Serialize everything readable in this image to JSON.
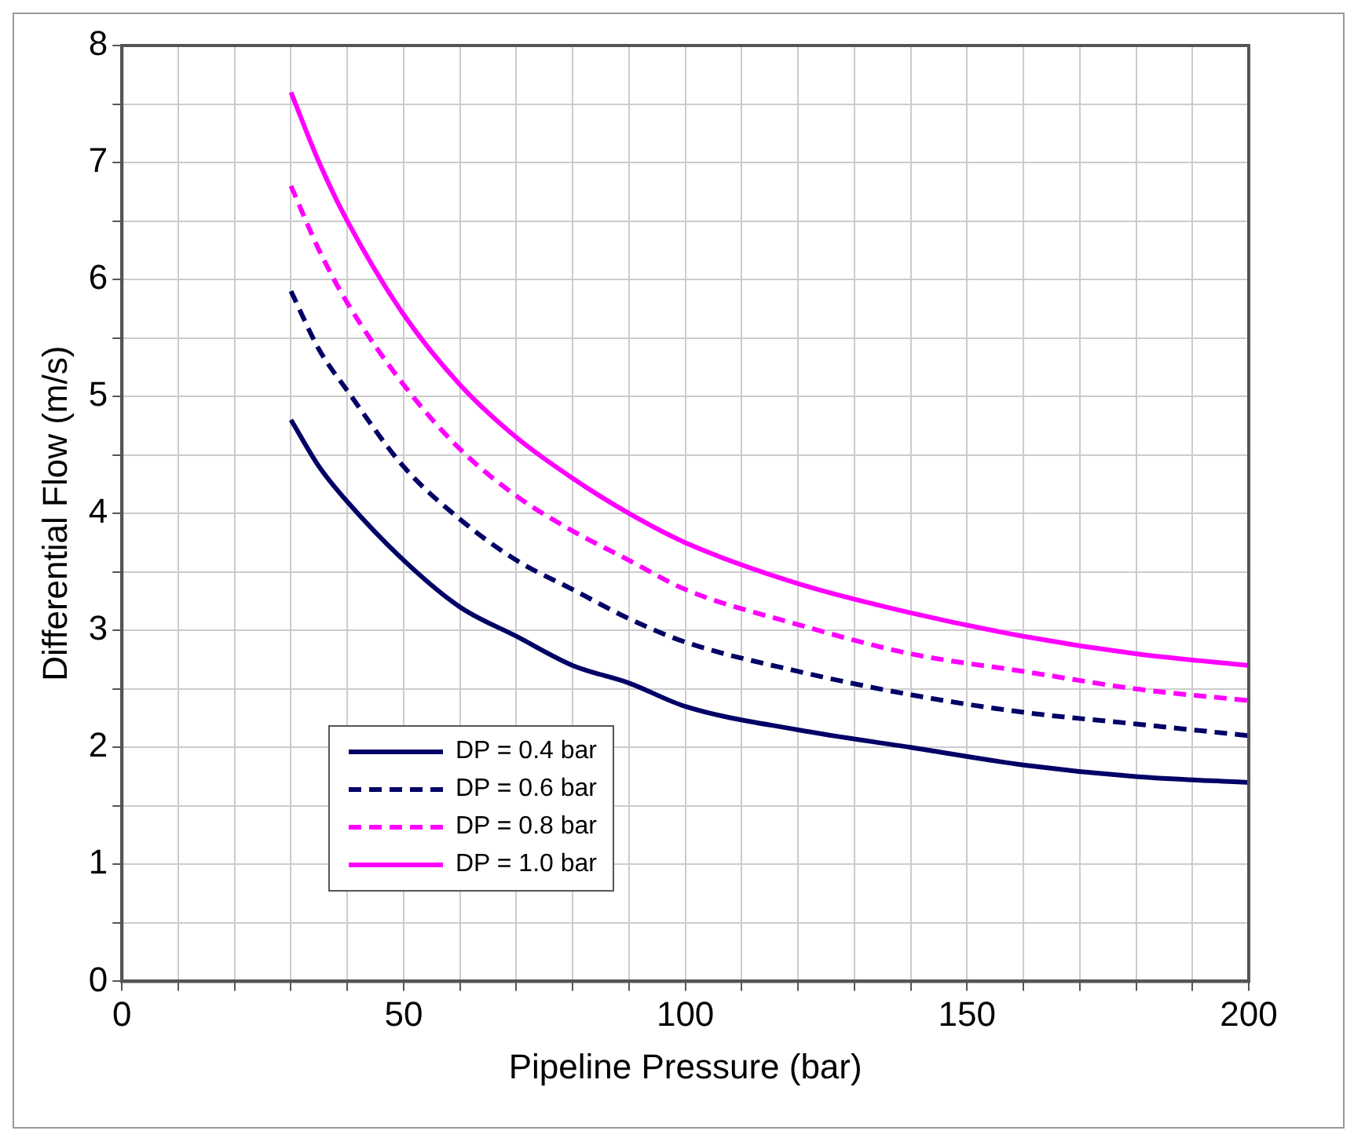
{
  "chart_data": {
    "type": "line",
    "xlabel": "Pipeline Pressure (bar)",
    "ylabel": "Differential Flow (m/s)",
    "x": [
      30,
      35,
      40,
      50,
      60,
      70,
      80,
      90,
      100,
      120,
      140,
      160,
      180,
      200
    ],
    "series": [
      {
        "name": "DP = 0.4 bar",
        "color": "#000066",
        "line_style": "solid",
        "values": [
          4.8,
          4.4,
          4.1,
          3.6,
          3.2,
          2.95,
          2.7,
          2.55,
          2.35,
          2.15,
          2.0,
          1.85,
          1.75,
          1.7
        ]
      },
      {
        "name": "DP = 0.6 bar",
        "color": "#000066",
        "line_style": "dashed",
        "values": [
          5.9,
          5.4,
          5.05,
          4.4,
          3.95,
          3.6,
          3.35,
          3.1,
          2.9,
          2.65,
          2.45,
          2.3,
          2.2,
          2.1
        ]
      },
      {
        "name": "DP = 0.8 bar",
        "color": "#ff00ff",
        "line_style": "dashed",
        "values": [
          6.8,
          6.25,
          5.8,
          5.1,
          4.55,
          4.15,
          3.85,
          3.6,
          3.35,
          3.05,
          2.8,
          2.65,
          2.5,
          2.4
        ]
      },
      {
        "name": "DP = 1.0 bar",
        "color": "#ff00ff",
        "line_style": "solid",
        "values": [
          7.6,
          7.0,
          6.5,
          5.7,
          5.1,
          4.65,
          4.3,
          4.0,
          3.75,
          3.4,
          3.15,
          2.95,
          2.8,
          2.7
        ]
      }
    ],
    "xlim": [
      0,
      200
    ],
    "xticks": [
      0,
      {
        "value": 10,
        "label": null
      },
      {
        "value": 20,
        "label": null
      },
      {
        "value": 30,
        "label": null
      },
      {
        "value": 40,
        "label": null
      },
      50,
      {
        "value": 60,
        "label": null
      },
      {
        "value": 70,
        "label": null
      },
      {
        "value": 80,
        "label": null
      },
      {
        "value": 90,
        "label": null
      },
      100,
      {
        "value": 110,
        "label": null
      },
      {
        "value": 120,
        "label": null
      },
      {
        "value": 130,
        "label": null
      },
      {
        "value": 140,
        "label": null
      },
      150,
      {
        "value": 160,
        "label": null
      },
      {
        "value": 170,
        "label": null
      },
      {
        "value": 180,
        "label": null
      },
      {
        "value": 190,
        "label": null
      },
      200
    ],
    "ylim": [
      0,
      8
    ],
    "yticks": [
      0,
      {
        "value": 0.5,
        "label": null
      },
      1,
      {
        "value": 1.5,
        "label": null
      },
      2,
      {
        "value": 2.5,
        "label": null
      },
      3,
      {
        "value": 3.5,
        "label": null
      },
      4,
      {
        "value": 4.5,
        "label": null
      },
      5,
      {
        "value": 5.5,
        "label": null
      },
      6,
      {
        "value": 6.5,
        "label": null
      },
      7,
      {
        "value": 7.5,
        "label": null
      },
      8
    ],
    "grid": true,
    "legend": "bottom left",
    "marker": "none"
  }
}
